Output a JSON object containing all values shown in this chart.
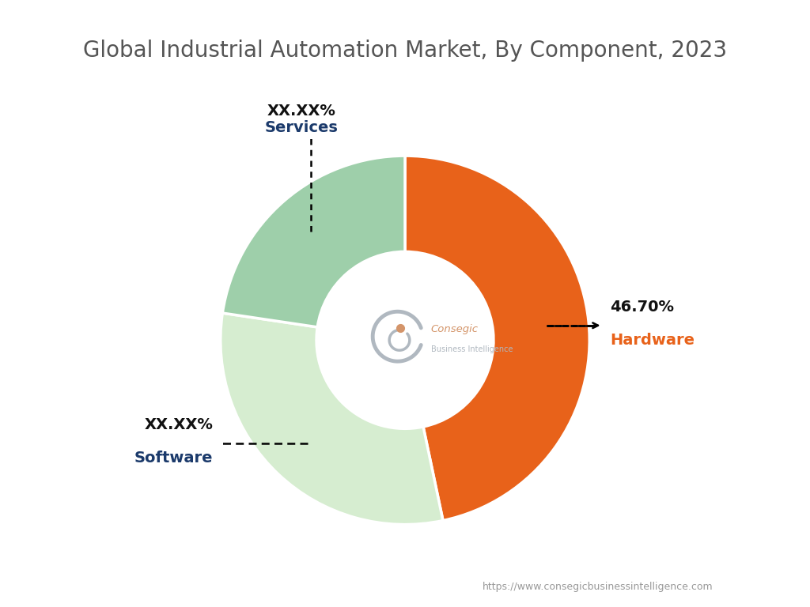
{
  "title": "Global Industrial Automation Market, By Component, 2023",
  "title_fontsize": 20,
  "title_color": "#555555",
  "segments": [
    {
      "label": "Hardware",
      "value": 46.7,
      "color": "#E8621A",
      "display_pct": "46.70%"
    },
    {
      "label": "Software",
      "value": 30.65,
      "color": "#D6EDD0",
      "display_pct": "XX.XX%"
    },
    {
      "label": "Services",
      "value": 22.65,
      "color": "#9ECFAA",
      "display_pct": "XX.XX%"
    }
  ],
  "label_colors": {
    "Hardware": "#E8621A",
    "Software": "#1B3A6B",
    "Services": "#1B3A6B"
  },
  "pct_color": "#111111",
  "donut_width": 0.52,
  "watermark_line1": "Consegic",
  "watermark_line2": "Business Intelligence",
  "footer_text": "https://www.consegicbusinessintelligence.com",
  "footer_color": "#999999",
  "background_color": "#FFFFFF"
}
